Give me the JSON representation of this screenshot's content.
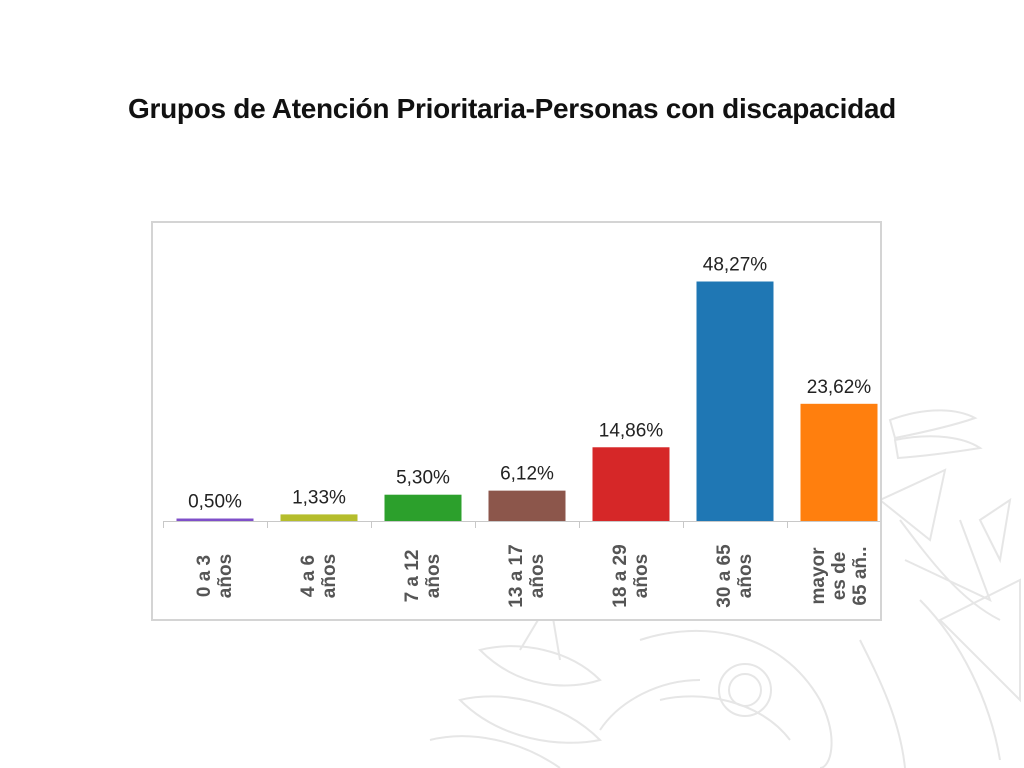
{
  "title": "Grupos de Atención Prioritaria-Personas con discapacidad",
  "colors": {
    "frame": "#d4d4d4",
    "axis": "#c8c8c8",
    "label": "#555555",
    "value_text": "#222222",
    "watermark": "#e6e6e6"
  },
  "chart_data": {
    "type": "bar",
    "title": "",
    "xlabel": "",
    "ylabel": "",
    "ylim": [
      0,
      52
    ],
    "grid": false,
    "legend": "none",
    "categories": [
      "0 a 3\naños",
      "4 a 6\naños",
      "7 a 12\naños",
      "13 a 17\naños",
      "18 a 29\naños",
      "30 a 65\naños",
      "mayor\nes de\n65 añ.."
    ],
    "values": [
      0.5,
      1.33,
      5.3,
      6.12,
      14.86,
      48.27,
      23.62
    ],
    "data_labels": [
      "0,50%",
      "1,33%",
      "5,30%",
      "6,12%",
      "14,86%",
      "48,27%",
      "23,62%"
    ],
    "bar_colors": [
      "#7f4fc9",
      "#b5bd2c",
      "#2ca02c",
      "#8c564b",
      "#d62728",
      "#1f77b4",
      "#ff7f0e"
    ]
  }
}
